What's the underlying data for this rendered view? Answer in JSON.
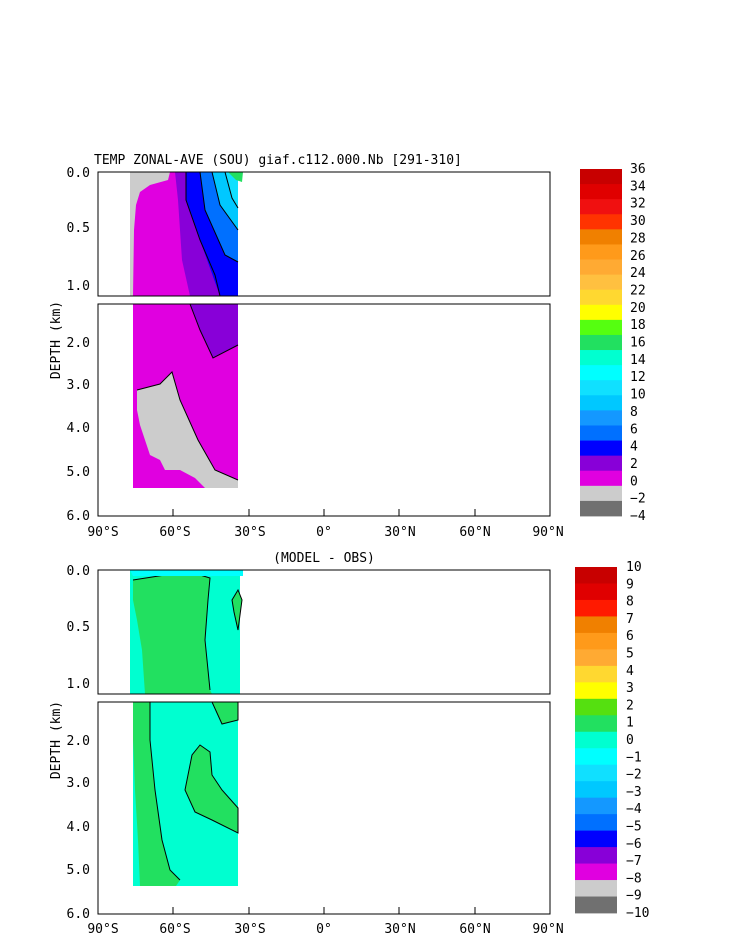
{
  "chart_data": [
    {
      "type": "heatmap",
      "title": "TEMP ZONAL-AVE (SOU) giaf.c112.000.Nb [291-310]",
      "ylabel": "DEPTH (km)",
      "xticks": [
        "90°S",
        "60°S",
        "30°S",
        "0°",
        "30°N",
        "60°N",
        "90°N"
      ],
      "xlim": [
        -90,
        90
      ],
      "upper_yticks": [
        "0.0",
        "0.5",
        "1.0"
      ],
      "lower_yticks": [
        "2.0",
        "3.0",
        "4.0",
        "5.0",
        "6.0"
      ],
      "colorbar_labels": [
        "36",
        "34",
        "32",
        "30",
        "28",
        "26",
        "24",
        "22",
        "20",
        "18",
        "16",
        "14",
        "12",
        "10",
        "8",
        "6",
        "4",
        "2",
        "0",
        "−2",
        "−4"
      ],
      "colorbar_colors": [
        "#c80000",
        "#e00000",
        "#f01010",
        "#ff3300",
        "#f08000",
        "#ff9a1a",
        "#ffaa33",
        "#ffc040",
        "#ffd830",
        "#ffff00",
        "#55ff10",
        "#22e060",
        "#00ffd0",
        "#00ffff",
        "#10e0ff",
        "#00c8ff",
        "#1498ff",
        "#0070ff",
        "#0000ff",
        "#8800d8",
        "#e000e0",
        "#cccccc",
        "#707070"
      ]
    },
    {
      "type": "heatmap",
      "title": "(MODEL - OBS)",
      "ylabel": "DEPTH (km)",
      "xticks": [
        "90°S",
        "60°S",
        "30°S",
        "0°",
        "30°N",
        "60°N",
        "90°N"
      ],
      "xlim": [
        -90,
        90
      ],
      "upper_yticks": [
        "0.0",
        "0.5",
        "1.0"
      ],
      "lower_yticks": [
        "2.0",
        "3.0",
        "4.0",
        "5.0",
        "6.0"
      ],
      "colorbar_labels": [
        "10",
        "9",
        "8",
        "7",
        "6",
        "5",
        "4",
        "3",
        "2",
        "1",
        "0",
        "−1",
        "−2",
        "−3",
        "−4",
        "−5",
        "−6",
        "−7",
        "−8",
        "−9",
        "−10"
      ],
      "colorbar_colors": [
        "#c80000",
        "#e00000",
        "#ff1a00",
        "#f08000",
        "#ff9a1a",
        "#ffaa33",
        "#ffd830",
        "#ffff00",
        "#55e010",
        "#22e060",
        "#00ffd0",
        "#00ffff",
        "#10e0ff",
        "#00c8ff",
        "#1498ff",
        "#0070ff",
        "#0000ff",
        "#8800d8",
        "#e000e0",
        "#cccccc",
        "#707070"
      ]
    }
  ]
}
